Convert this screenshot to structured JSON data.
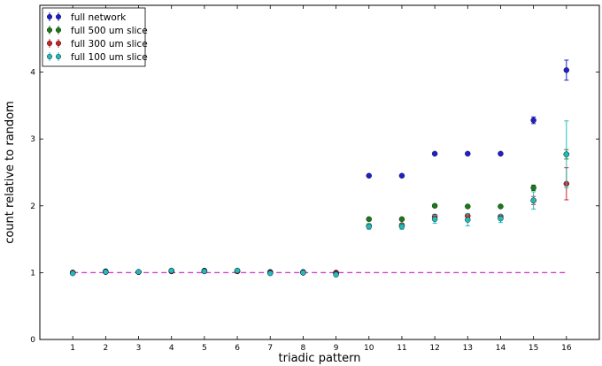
{
  "chart_data": {
    "type": "scatter",
    "xlabel": "triadic pattern",
    "ylabel": "count relative to random",
    "xlim": [
      0,
      17
    ],
    "ylim": [
      0,
      5
    ],
    "x_ticks": [
      "1",
      "2",
      "3",
      "4",
      "5",
      "6",
      "7",
      "8",
      "9",
      "10",
      "11",
      "12",
      "13",
      "14",
      "15",
      "16"
    ],
    "y_ticks": [
      "0",
      "1",
      "2",
      "3",
      "4"
    ],
    "grid": false,
    "legend_position": "top-left",
    "reference_line": {
      "y": 1,
      "color": "#cc33cc",
      "style": "dashed"
    },
    "series": [
      {
        "name": "full network",
        "color": "#1f1fcc",
        "x": [
          1,
          2,
          3,
          4,
          5,
          6,
          7,
          8,
          9,
          10,
          11,
          12,
          13,
          14,
          15,
          16
        ],
        "y": [
          1.0,
          1.02,
          1.01,
          1.03,
          1.03,
          1.03,
          1.01,
          1.01,
          1.0,
          2.45,
          2.45,
          2.78,
          2.78,
          2.78,
          3.28,
          4.03
        ],
        "err": [
          0.01,
          0.01,
          0.01,
          0.01,
          0.01,
          0.01,
          0.01,
          0.01,
          0.01,
          0.01,
          0.01,
          0.01,
          0.01,
          0.01,
          0.05,
          0.15
        ]
      },
      {
        "name": "full 500 um slice",
        "color": "#1a7a1a",
        "x": [
          1,
          2,
          3,
          4,
          5,
          6,
          7,
          8,
          9,
          10,
          11,
          12,
          13,
          14,
          15,
          16
        ],
        "y": [
          1.0,
          1.01,
          1.01,
          1.02,
          1.02,
          1.02,
          1.0,
          1.0,
          0.99,
          1.8,
          1.8,
          2.0,
          1.99,
          1.99,
          2.27,
          2.77
        ],
        "err": [
          0.01,
          0.01,
          0.01,
          0.01,
          0.01,
          0.01,
          0.01,
          0.01,
          0.01,
          0.02,
          0.02,
          0.02,
          0.02,
          0.02,
          0.04,
          0.07
        ]
      },
      {
        "name": "full 300 um slice",
        "color": "#cc2222",
        "x": [
          1,
          2,
          3,
          4,
          5,
          6,
          7,
          8,
          9,
          10,
          11,
          12,
          13,
          14,
          15,
          16
        ],
        "y": [
          1.0,
          1.01,
          1.01,
          1.02,
          1.02,
          1.02,
          1.0,
          1.0,
          0.99,
          1.7,
          1.71,
          1.84,
          1.85,
          1.84,
          2.08,
          2.33
        ],
        "err": [
          0.01,
          0.01,
          0.01,
          0.01,
          0.01,
          0.01,
          0.01,
          0.01,
          0.01,
          0.03,
          0.03,
          0.03,
          0.03,
          0.03,
          0.06,
          0.24
        ]
      },
      {
        "name": "full 100 um slice",
        "color": "#22bbbb",
        "x": [
          1,
          2,
          3,
          4,
          5,
          6,
          7,
          8,
          9,
          10,
          11,
          12,
          13,
          14,
          15,
          16
        ],
        "y": [
          0.99,
          1.01,
          1.01,
          1.03,
          1.02,
          1.03,
          0.99,
          1.0,
          0.97,
          1.69,
          1.69,
          1.8,
          1.79,
          1.81,
          2.08,
          2.77
        ],
        "err": [
          0.01,
          0.01,
          0.01,
          0.01,
          0.01,
          0.01,
          0.01,
          0.01,
          0.02,
          0.04,
          0.04,
          0.06,
          0.09,
          0.06,
          0.13,
          0.5
        ]
      }
    ]
  }
}
